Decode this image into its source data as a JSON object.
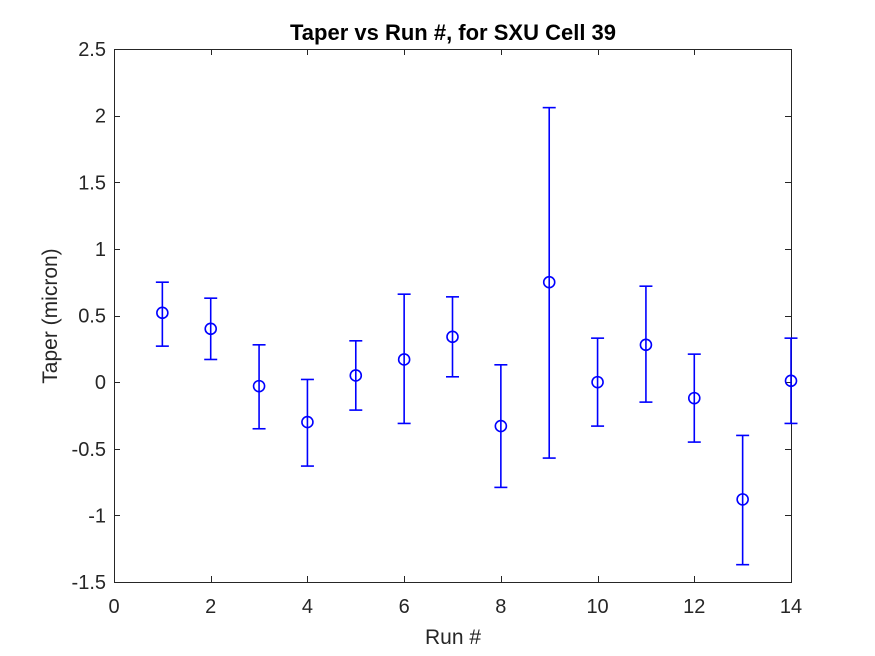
{
  "chart_data": {
    "type": "scatter",
    "subtype": "errorbar",
    "title": "Taper vs Run #, for SXU Cell 39",
    "xlabel": "Run #",
    "ylabel": "Taper (micron)",
    "xlim": [
      0,
      14
    ],
    "ylim": [
      -1.5,
      2.5
    ],
    "xticks": [
      0,
      2,
      4,
      6,
      8,
      10,
      12,
      14
    ],
    "yticks": [
      -1.5,
      -1,
      -0.5,
      0,
      0.5,
      1,
      1.5,
      2,
      2.5
    ],
    "grid": "off",
    "legend": "none",
    "marker": "open-circle",
    "series_color": "#0000FF",
    "axis_color": "#262626",
    "tick_label_color": "#262626",
    "title_color": "#000000",
    "background": "#FFFFFF",
    "points": [
      {
        "run": 1,
        "value": 0.52,
        "upper": 0.75,
        "lower": 0.27
      },
      {
        "run": 2,
        "value": 0.4,
        "upper": 0.63,
        "lower": 0.17
      },
      {
        "run": 3,
        "value": -0.03,
        "upper": 0.28,
        "lower": -0.35
      },
      {
        "run": 4,
        "value": -0.3,
        "upper": 0.02,
        "lower": -0.63
      },
      {
        "run": 5,
        "value": 0.05,
        "upper": 0.31,
        "lower": -0.21
      },
      {
        "run": 6,
        "value": 0.17,
        "upper": 0.66,
        "lower": -0.31
      },
      {
        "run": 7,
        "value": 0.34,
        "upper": 0.64,
        "lower": 0.04
      },
      {
        "run": 8,
        "value": -0.33,
        "upper": 0.13,
        "lower": -0.79
      },
      {
        "run": 9,
        "value": 0.75,
        "upper": 2.06,
        "lower": -0.57
      },
      {
        "run": 10,
        "value": 0.0,
        "upper": 0.33,
        "lower": -0.33
      },
      {
        "run": 11,
        "value": 0.28,
        "upper": 0.72,
        "lower": -0.15
      },
      {
        "run": 12,
        "value": -0.12,
        "upper": 0.21,
        "lower": -0.45
      },
      {
        "run": 13,
        "value": -0.88,
        "upper": -0.4,
        "lower": -1.37
      },
      {
        "run": 14,
        "value": 0.01,
        "upper": 0.33,
        "lower": -0.31
      }
    ]
  }
}
